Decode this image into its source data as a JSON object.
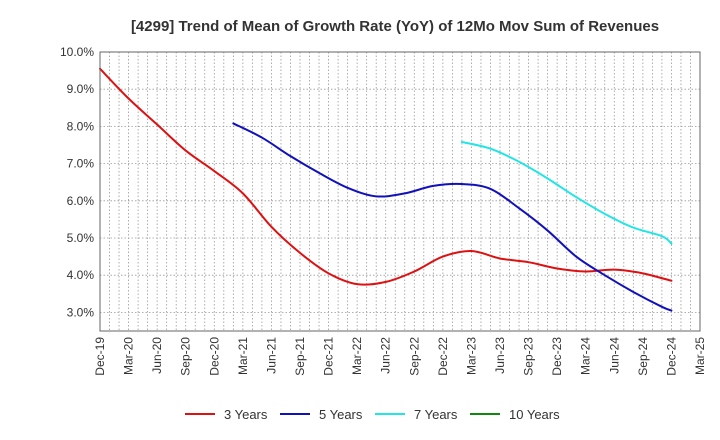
{
  "chart_data": {
    "type": "line",
    "title": "[4299]  Trend of Mean of Growth Rate (YoY) of 12Mo Mov Sum of Revenues",
    "xlabel": "",
    "ylabel": "",
    "ylim": [
      2.5,
      10.0
    ],
    "yticks": [
      3.0,
      4.0,
      5.0,
      6.0,
      7.0,
      8.0,
      9.0,
      10.0
    ],
    "ytick_labels": [
      "3.0%",
      "4.0%",
      "5.0%",
      "6.0%",
      "7.0%",
      "8.0%",
      "9.0%",
      "10.0%"
    ],
    "x_start_index": 0,
    "x_end_index": 63,
    "x_tick_indices": [
      0,
      3,
      6,
      9,
      12,
      15,
      18,
      21,
      24,
      27,
      30,
      33,
      36,
      39,
      42,
      45,
      48,
      51,
      54,
      57,
      60,
      63
    ],
    "x_tick_labels": [
      "Dec-19",
      "Mar-20",
      "Jun-20",
      "Sep-20",
      "Dec-20",
      "Mar-21",
      "Jun-21",
      "Sep-21",
      "Dec-21",
      "Mar-22",
      "Jun-22",
      "Sep-22",
      "Dec-22",
      "Mar-23",
      "Jun-23",
      "Sep-23",
      "Dec-23",
      "Mar-24",
      "Jun-24",
      "Sep-24",
      "Dec-24",
      "Mar-25"
    ],
    "grid": true,
    "legend_position": "bottom",
    "series": [
      {
        "name": "3 Years",
        "color": "#dd1111",
        "x": [
          0,
          3,
          6,
          9,
          12,
          15,
          18,
          21,
          24,
          27,
          30,
          33,
          36,
          39,
          42,
          45,
          48,
          51,
          54,
          57,
          60
        ],
        "values": [
          9.55,
          8.75,
          8.05,
          7.35,
          6.8,
          6.2,
          5.3,
          4.6,
          4.05,
          3.76,
          3.82,
          4.1,
          4.5,
          4.65,
          4.45,
          4.35,
          4.18,
          4.1,
          4.15,
          4.05,
          3.85
        ]
      },
      {
        "name": "5 Years",
        "color": "#1111bb",
        "x": [
          14,
          17,
          20,
          23,
          26,
          29,
          32,
          35,
          38,
          41,
          44,
          47,
          50,
          53,
          56,
          59,
          60
        ],
        "values": [
          8.08,
          7.7,
          7.2,
          6.75,
          6.35,
          6.12,
          6.2,
          6.4,
          6.45,
          6.32,
          5.8,
          5.2,
          4.5,
          4.0,
          3.55,
          3.15,
          3.05
        ]
      },
      {
        "name": "7 Years",
        "color": "#22e5e5",
        "x": [
          38,
          41,
          44,
          47,
          50,
          53,
          56,
          59,
          60
        ],
        "values": [
          7.58,
          7.4,
          7.05,
          6.6,
          6.1,
          5.65,
          5.28,
          5.05,
          4.85
        ]
      },
      {
        "name": "10 Years",
        "color": "#118811",
        "x": [],
        "values": []
      }
    ]
  }
}
